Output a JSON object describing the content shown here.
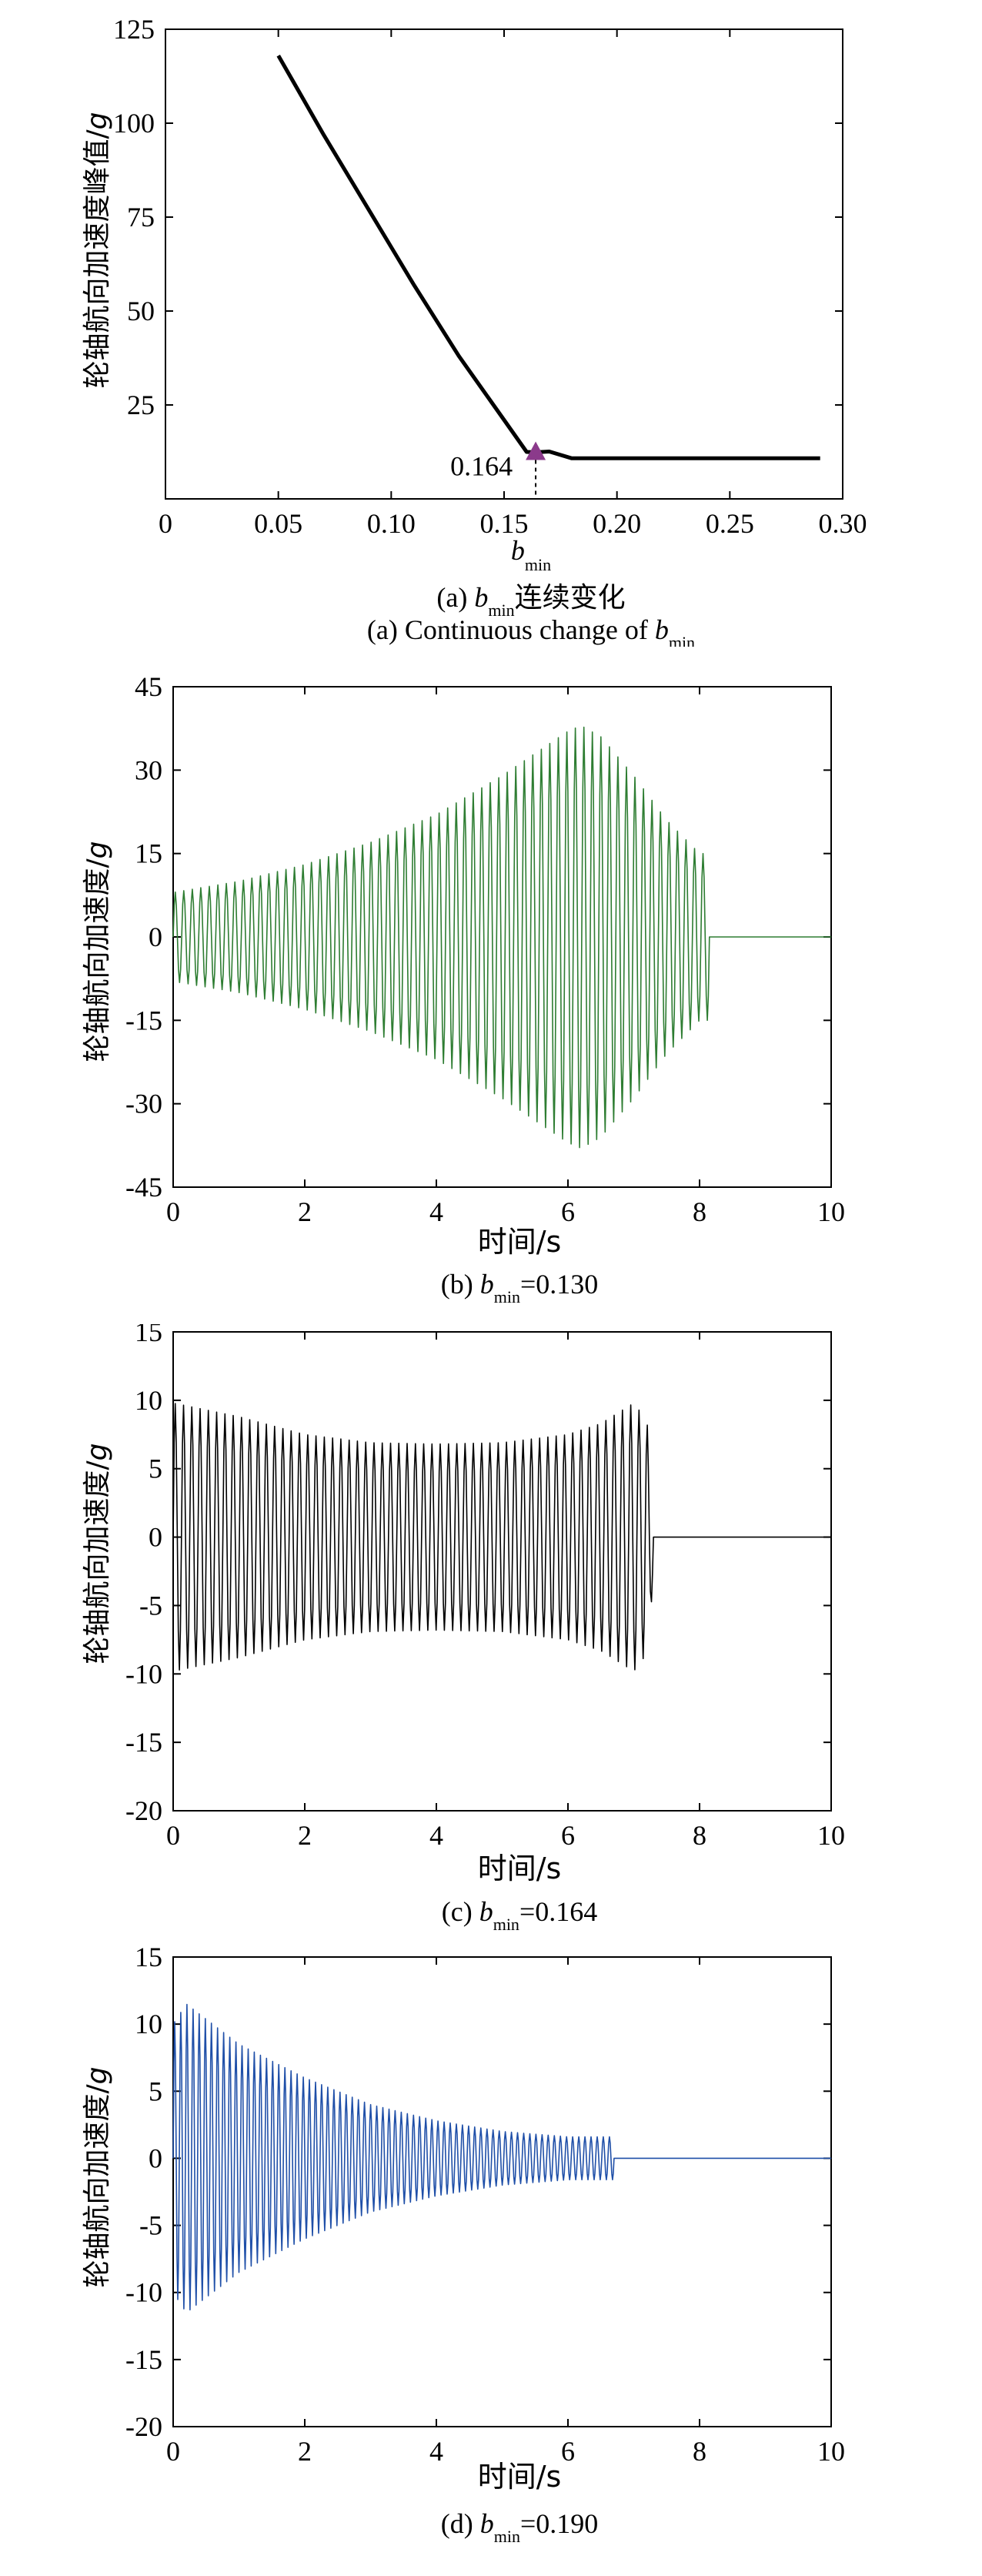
{
  "chart_data": [
    {
      "id": "a",
      "type": "line",
      "ylabel_main": "轮轴航向加速度峰值/",
      "ylabel_unit": "g",
      "xlabel_main": "b",
      "xlabel_sub": "min",
      "caption_line1": {
        "prefix": "(a) ",
        "var": "b",
        "sub": "min",
        "suffix": "连续变化"
      },
      "caption_line2": {
        "prefix": "(a) Continuous change of ",
        "var": "b",
        "sub": "min"
      },
      "xlim": [
        0,
        0.3
      ],
      "ylim": [
        0,
        125
      ],
      "xticks": [
        "0",
        "0.05",
        "0.10",
        "0.15",
        "0.20",
        "0.25",
        "0.30"
      ],
      "yticks": [
        "25",
        "50",
        "75",
        "100",
        "125"
      ],
      "color": "#000000",
      "x": [
        0.05,
        0.07,
        0.09,
        0.11,
        0.13,
        0.15,
        0.16,
        0.164,
        0.17,
        0.18,
        0.2,
        0.22,
        0.24,
        0.26,
        0.28,
        0.29
      ],
      "y": [
        118,
        97,
        77,
        57,
        38,
        21,
        12.5,
        12.4,
        12.6,
        10.8,
        10.8,
        10.8,
        10.8,
        10.8,
        10.8,
        10.8
      ],
      "annotation": {
        "text": "0.164",
        "x": 0.164,
        "y": 12.4,
        "marker_color": "#8b3a8b"
      }
    },
    {
      "id": "b",
      "type": "line",
      "ylabel_main": "轮轴航向加速度/",
      "ylabel_unit": "g",
      "xlabel": "时间/s",
      "caption": {
        "prefix": "(b) ",
        "var": "b",
        "sub": "min",
        "suffix": "=0.130"
      },
      "xlim": [
        0,
        10
      ],
      "ylim": [
        -45,
        45
      ],
      "xticks": [
        "0",
        "2",
        "4",
        "6",
        "8",
        "10"
      ],
      "yticks": [
        "-45",
        "-30",
        "-15",
        "0",
        "15",
        "30",
        "45"
      ],
      "color": "#2e7d32",
      "cycles": 63,
      "end_time": 8.15,
      "envelope_t": [
        0,
        1,
        2,
        3,
        4,
        5,
        5.5,
        6,
        6.2,
        6.5,
        7,
        7.5,
        8,
        8.15
      ],
      "envelope_a": [
        8,
        10,
        13,
        17,
        22,
        29,
        33,
        37,
        38,
        36,
        29,
        21,
        15,
        15
      ]
    },
    {
      "id": "c",
      "type": "line",
      "ylabel_main": "轮轴航向加速度/",
      "ylabel_unit": "g",
      "xlabel": "时间/s",
      "caption": {
        "prefix": "(c) ",
        "var": "b",
        "sub": "min",
        "suffix": "=0.164"
      },
      "xlim": [
        0,
        10
      ],
      "ylim": [
        -20,
        15
      ],
      "xticks": [
        "0",
        "2",
        "4",
        "6",
        "8",
        "10"
      ],
      "yticks": [
        "-20",
        "-15",
        "-10",
        "-5",
        "0",
        "5",
        "10",
        "15"
      ],
      "color": "#000000",
      "cycles": 58,
      "end_time": 7.3,
      "envelope_t": [
        0,
        1,
        2,
        3,
        4,
        5,
        6,
        6.5,
        7,
        7.2,
        7.3
      ],
      "envelope_a": [
        9.8,
        8.8,
        7.5,
        6.9,
        6.8,
        6.9,
        7.5,
        8.3,
        9.8,
        8.5,
        3
      ]
    },
    {
      "id": "d",
      "type": "line",
      "ylabel_main": "轮轴航向加速度/",
      "ylabel_unit": "g",
      "xlabel": "时间/s",
      "caption": {
        "prefix": "(d) ",
        "var": "b",
        "sub": "min",
        "suffix": "=0.190"
      },
      "xlim": [
        0,
        10
      ],
      "ylim": [
        -20,
        15
      ],
      "xticks": [
        "0",
        "2",
        "4",
        "6",
        "8",
        "10"
      ],
      "yticks": [
        "-20",
        "-15",
        "-10",
        "-5",
        "0",
        "5",
        "10",
        "15"
      ],
      "color": "#1f4fa8",
      "cycles": 72,
      "end_time": 6.7,
      "envelope_t": [
        0,
        0.2,
        1,
        2,
        3,
        4,
        5,
        6,
        6.7
      ],
      "envelope_a": [
        10,
        11.5,
        8.5,
        6,
        4,
        2.8,
        2,
        1.6,
        1.6
      ]
    }
  ]
}
